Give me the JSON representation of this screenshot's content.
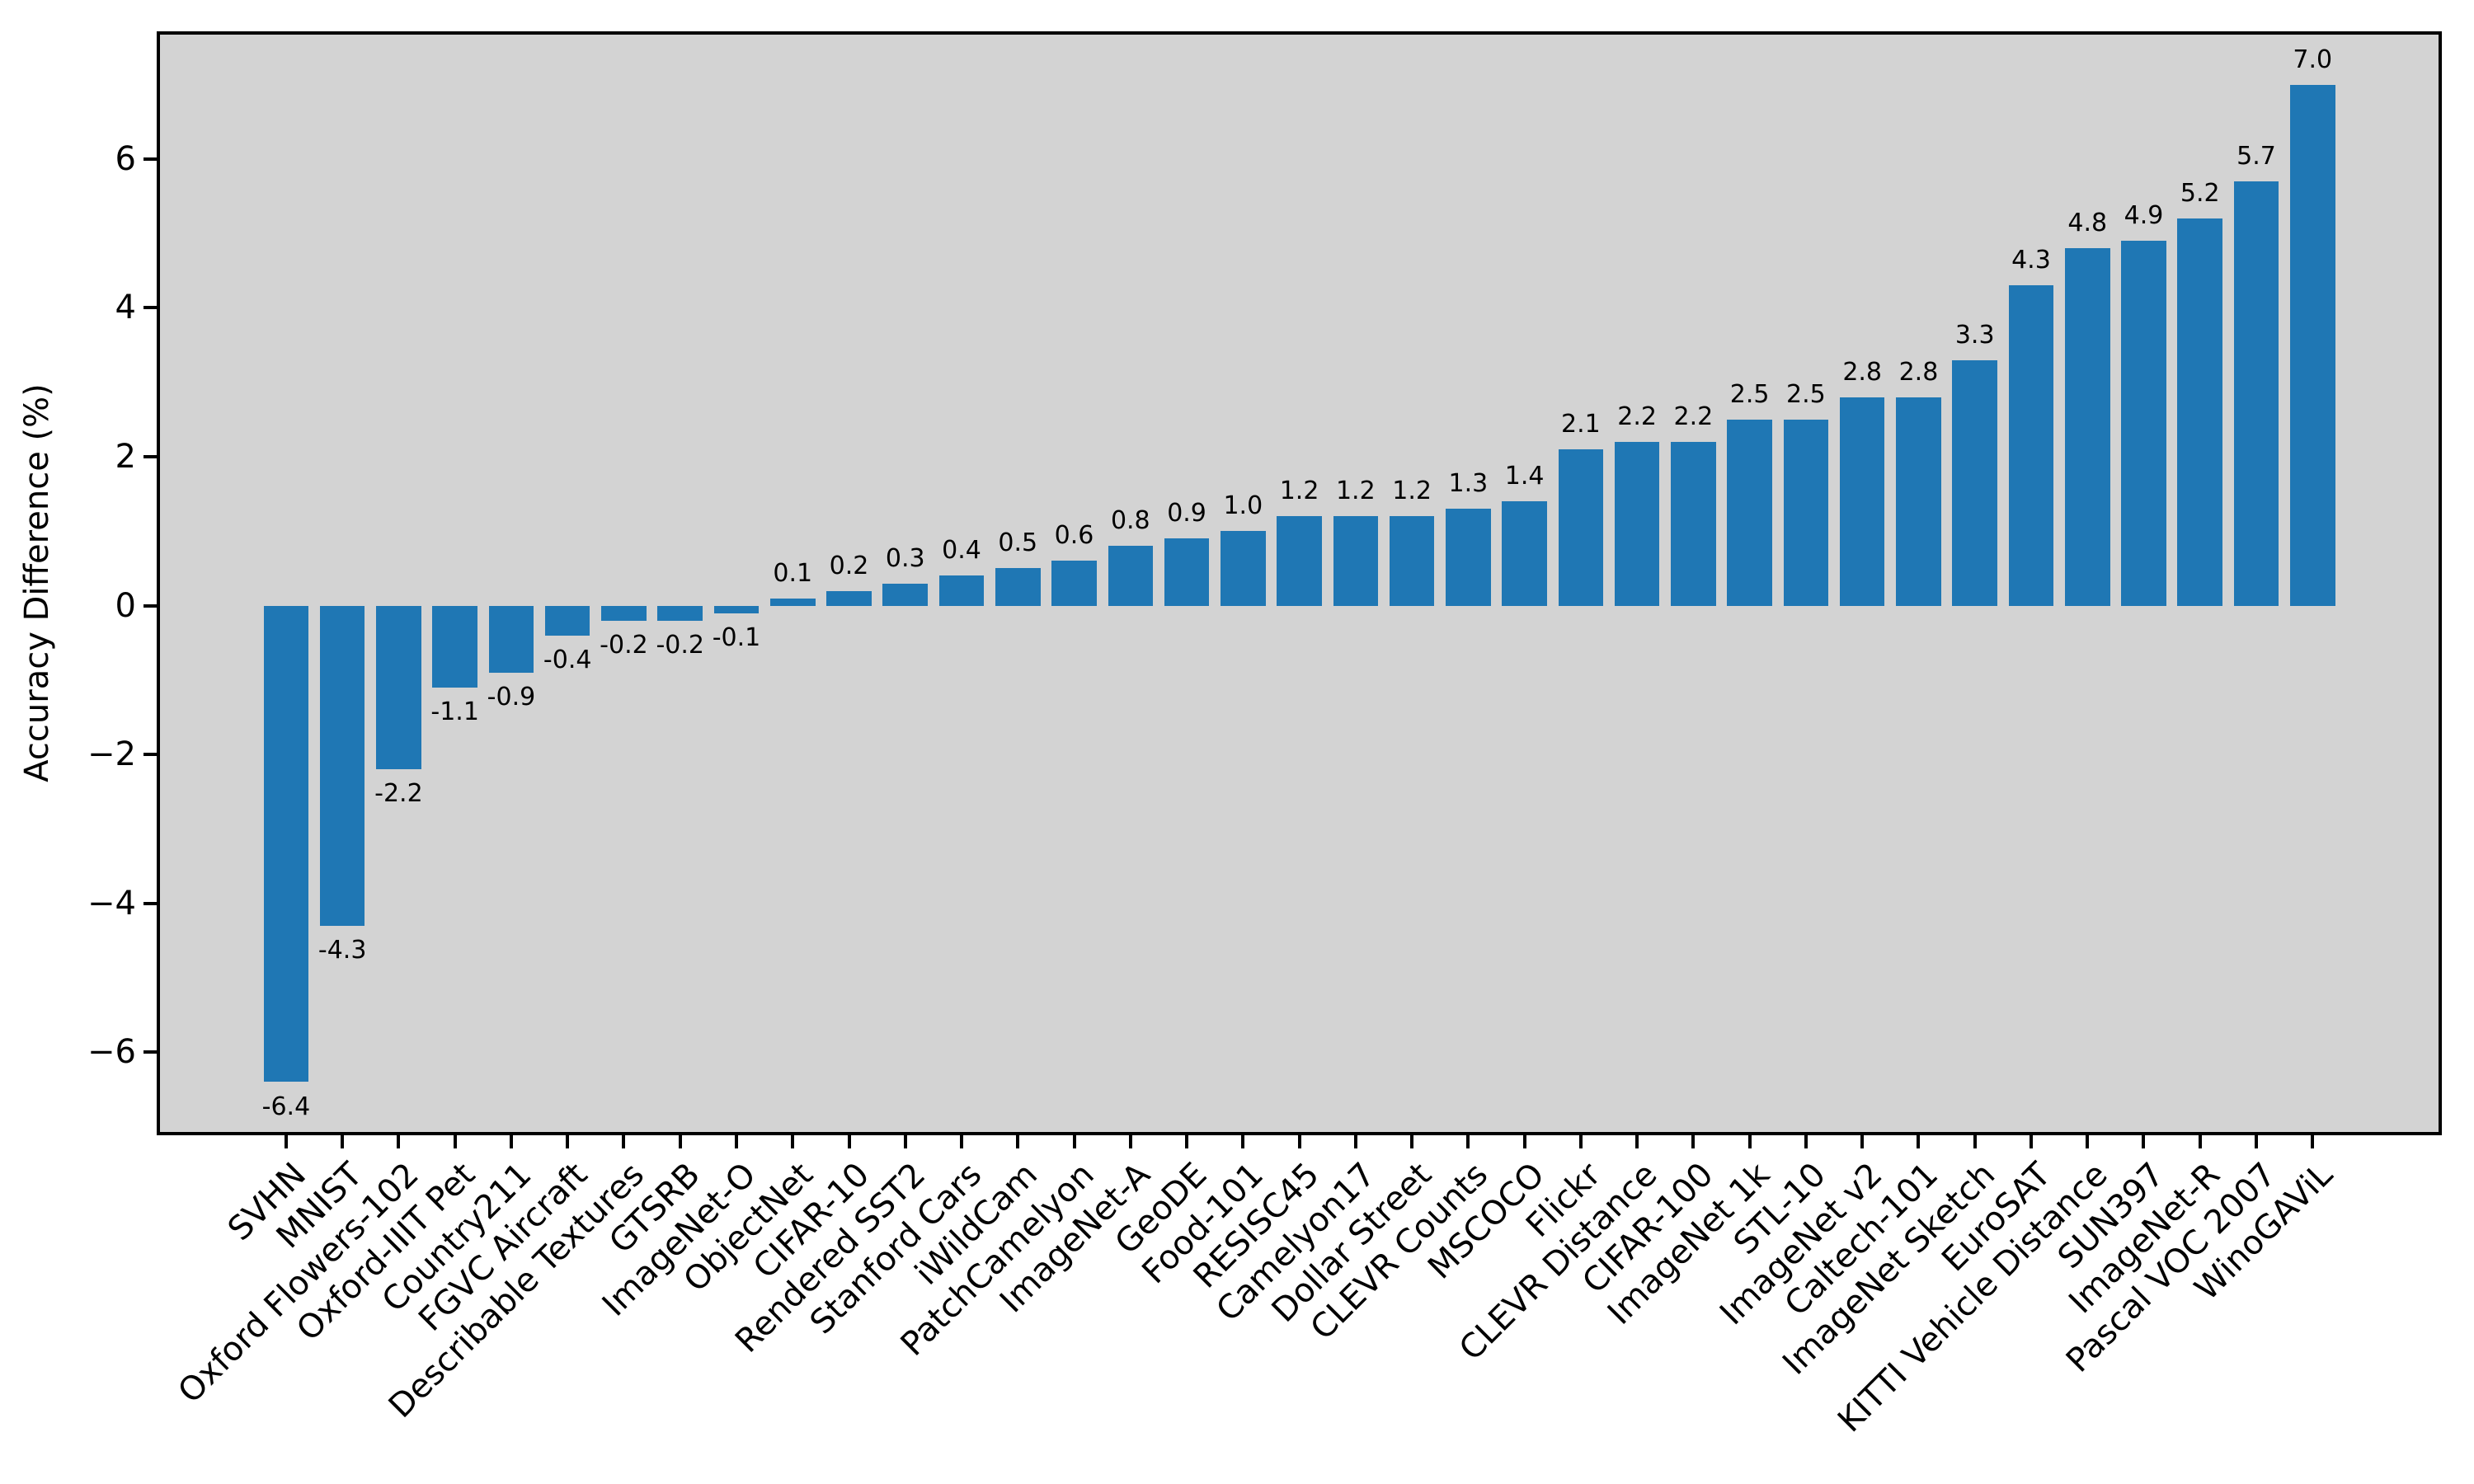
{
  "chart_data": {
    "type": "bar",
    "title": "",
    "xlabel": "",
    "ylabel": "Accuracy Difference (%)",
    "categories": [
      "SVHN",
      "MNIST",
      "Oxford Flowers-102",
      "Oxford-IIIT Pet",
      "Country211",
      "FGVC Aircraft",
      "Describable Textures",
      "GTSRB",
      "ImageNet-O",
      "ObjectNet",
      "CIFAR-10",
      "Rendered SST2",
      "Stanford Cars",
      "iWildCam",
      "PatchCamelyon",
      "ImageNet-A",
      "GeoDE",
      "Food-101",
      "RESISC45",
      "Camelyon17",
      "Dollar Street",
      "CLEVR Counts",
      "MSCOCO",
      "Flickr",
      "CLEVR Distance",
      "CIFAR-100",
      "ImageNet 1k",
      "STL-10",
      "ImageNet v2",
      "Caltech-101",
      "ImageNet Sketch",
      "EuroSAT",
      "KITTI Vehicle Distance",
      "SUN397",
      "ImageNet-R",
      "Pascal VOC 2007",
      "WinoGAViL"
    ],
    "values": [
      -6.4,
      -4.3,
      -2.2,
      -1.1,
      -0.9,
      -0.4,
      -0.2,
      -0.2,
      -0.1,
      0.1,
      0.2,
      0.3,
      0.4,
      0.5,
      0.6,
      0.8,
      0.9,
      1.0,
      1.2,
      1.2,
      1.2,
      1.3,
      1.4,
      2.1,
      2.2,
      2.2,
      2.5,
      2.5,
      2.8,
      2.8,
      3.3,
      4.3,
      4.8,
      4.9,
      5.2,
      5.7,
      7.0
    ],
    "bar_labels": [
      "-6.4",
      "-4.3",
      "-2.2",
      "-1.1",
      "-0.9",
      "-0.4",
      "-0.2",
      "-0.2",
      "-0.1",
      "0.1",
      "0.2",
      "0.3",
      "0.4",
      "0.5",
      "0.6",
      "0.8",
      "0.9",
      "1.0",
      "1.2",
      "1.2",
      "1.2",
      "1.3",
      "1.4",
      "2.1",
      "2.2",
      "2.2",
      "2.5",
      "2.5",
      "2.8",
      "2.8",
      "3.3",
      "4.3",
      "4.8",
      "4.9",
      "5.2",
      "5.7",
      "7.0"
    ],
    "y_ticks": [
      6,
      4,
      2,
      0,
      -2,
      -4,
      -6
    ],
    "y_tick_labels": [
      "6",
      "4",
      "2",
      "0",
      "−2",
      "−4",
      "−6"
    ],
    "ylim": [
      -7.07,
      7.67
    ],
    "grid": false,
    "legend": null,
    "colors": {
      "bar": "#1f77b4",
      "plot_background": "#d3d3d3",
      "figure_background": "#ffffff",
      "text": "#000000",
      "spine": "#000000"
    }
  }
}
